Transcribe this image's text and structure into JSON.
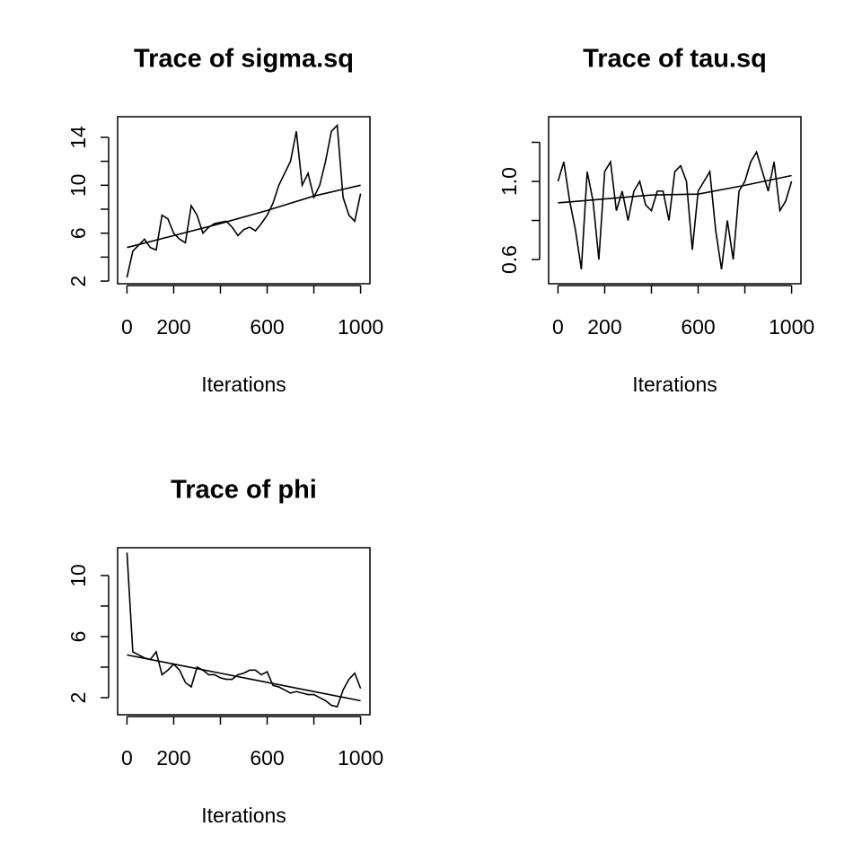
{
  "chart_data": [
    {
      "type": "line",
      "title": "Trace of sigma.sq",
      "xlabel": "Iterations",
      "xlim": [
        -40,
        1040
      ],
      "ylim": [
        1.78,
        15.72
      ],
      "xticks": [
        0,
        200,
        {
          "value": 400,
          "label": null
        },
        600,
        {
          "value": 800,
          "label": null
        },
        1000
      ],
      "yticks": [
        2,
        {
          "value": 4,
          "label": null
        },
        6,
        {
          "value": 8,
          "label": null
        },
        10,
        {
          "value": 12,
          "label": null
        },
        14
      ],
      "series": [
        {
          "color": "#000000",
          "x": [
            0,
            25,
            50,
            75,
            100,
            125,
            150,
            175,
            200,
            225,
            250,
            275,
            300,
            325,
            350,
            375,
            400,
            425,
            450,
            475,
            500,
            525,
            550,
            575,
            600,
            625,
            650,
            675,
            700,
            725,
            750,
            775,
            800,
            825,
            850,
            875,
            900,
            925,
            950,
            975,
            1000
          ],
          "values": [
            2.3,
            4.5,
            5,
            5.5,
            4.8,
            4.6,
            7.5,
            7.2,
            6,
            5.5,
            5.2,
            8.3,
            7.5,
            6,
            6.5,
            6.8,
            6.9,
            7,
            6.5,
            5.8,
            6.3,
            6.5,
            6.2,
            6.8,
            7.5,
            8.5,
            10,
            11,
            12,
            14.5,
            10,
            11,
            9,
            10,
            12,
            14.5,
            15,
            9,
            7.5,
            7,
            9.3
          ]
        },
        {
          "color": "#000000",
          "x": [
            0,
            200,
            400,
            600,
            800,
            1000
          ],
          "values": [
            4.8,
            5.8,
            6.8,
            7.9,
            9.1,
            10
          ]
        }
      ]
    },
    {
      "type": "line",
      "title": "Trace of tau.sq",
      "xlabel": "Iterations",
      "xlim": [
        -40,
        1040
      ],
      "ylim": [
        0.476,
        1.331
      ],
      "xticks": [
        0,
        200,
        {
          "value": 400,
          "label": null
        },
        600,
        {
          "value": 800,
          "label": null
        },
        1000
      ],
      "yticks": [
        0.6,
        {
          "value": 0.8,
          "label": null
        },
        {
          "value": 1,
          "label": "1.0"
        },
        {
          "value": 1.2,
          "label": null
        }
      ],
      "series": [
        {
          "color": "#000000",
          "x": [
            0,
            25,
            50,
            75,
            100,
            125,
            150,
            175,
            200,
            225,
            250,
            275,
            300,
            325,
            350,
            375,
            400,
            425,
            450,
            475,
            500,
            525,
            550,
            575,
            600,
            625,
            650,
            675,
            700,
            725,
            750,
            775,
            800,
            825,
            850,
            875,
            900,
            925,
            950,
            975,
            1000
          ],
          "values": [
            1.0,
            1.1,
            0.9,
            0.75,
            0.55,
            1.05,
            0.9,
            0.6,
            1.05,
            1.1,
            0.85,
            0.95,
            0.8,
            0.95,
            1.0,
            0.88,
            0.85,
            0.95,
            0.95,
            0.8,
            1.05,
            1.08,
            1.0,
            0.65,
            0.95,
            1.0,
            1.05,
            0.75,
            0.55,
            0.8,
            0.6,
            0.95,
            1.0,
            1.1,
            1.15,
            1.05,
            0.95,
            1.1,
            0.85,
            0.9,
            1.0
          ]
        },
        {
          "color": "#000000",
          "x": [
            0,
            200,
            400,
            600,
            800,
            1000
          ],
          "values": [
            0.89,
            0.91,
            0.93,
            0.935,
            0.98,
            1.03
          ]
        }
      ]
    },
    {
      "type": "line",
      "title": "Trace of phi",
      "xlabel": "Iterations",
      "xlim": [
        -40,
        1040
      ],
      "ylim": [
        0.88,
        11.82
      ],
      "xticks": [
        0,
        200,
        {
          "value": 400,
          "label": null
        },
        600,
        {
          "value": 800,
          "label": null
        },
        1000
      ],
      "yticks": [
        2,
        {
          "value": 4,
          "label": null
        },
        6,
        {
          "value": 8,
          "label": null
        },
        10
      ],
      "series": [
        {
          "color": "#000000",
          "x": [
            0,
            25,
            50,
            75,
            100,
            125,
            150,
            175,
            200,
            225,
            250,
            275,
            300,
            325,
            350,
            375,
            400,
            425,
            450,
            475,
            500,
            525,
            550,
            575,
            600,
            625,
            650,
            675,
            700,
            725,
            750,
            775,
            800,
            825,
            850,
            875,
            900,
            925,
            950,
            975,
            1000
          ],
          "values": [
            11.5,
            5,
            4.8,
            4.6,
            4.5,
            5,
            3.5,
            3.8,
            4.2,
            3.8,
            3,
            2.7,
            4,
            3.8,
            3.5,
            3.5,
            3.3,
            3.2,
            3.2,
            3.5,
            3.6,
            3.8,
            3.8,
            3.5,
            3.7,
            2.8,
            2.7,
            2.5,
            2.3,
            2.4,
            2.3,
            2.2,
            2.2,
            2,
            1.8,
            1.5,
            1.4,
            2.5,
            3.2,
            3.6,
            2.6
          ]
        },
        {
          "color": "#000000",
          "x": [
            0,
            200,
            400,
            600,
            800,
            1000
          ],
          "values": [
            4.8,
            4.2,
            3.6,
            3.0,
            2.4,
            1.8
          ]
        }
      ]
    }
  ]
}
